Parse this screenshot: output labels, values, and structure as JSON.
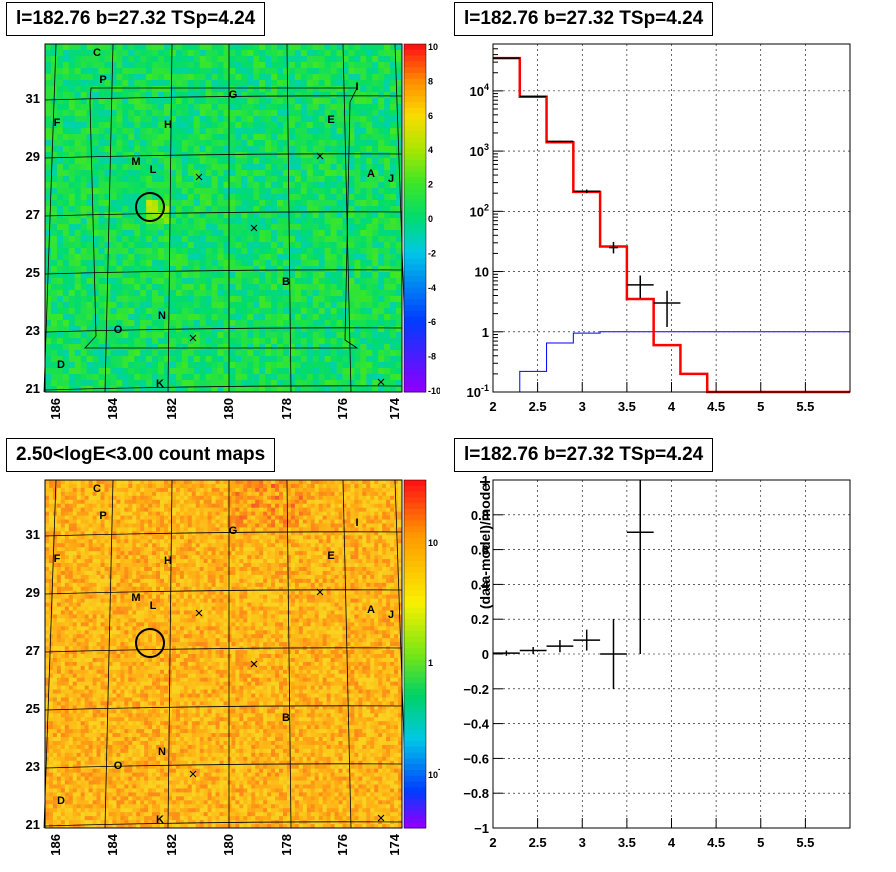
{
  "panels": {
    "tl_title": "l=182.76 b=27.32 TSp=4.24",
    "tr_title": "l=182.76 b=27.32 TSp=4.24",
    "bl_title": "2.50<logE<3.00 count maps",
    "br_title": "l=182.76 b=27.32 TSp=4.24"
  },
  "colors": {
    "model": "#ff0000",
    "background": "#0000ff",
    "data": "#000000"
  },
  "chart_data": [
    {
      "type": "heatmap",
      "title": "l=182.76 b=27.32 TSp=4.24",
      "x_ticks": [
        "186",
        "184",
        "182",
        "180",
        "178",
        "176",
        "174"
      ],
      "y_ticks": [
        "31",
        "29",
        "27",
        "25",
        "23",
        "21"
      ],
      "colorbar_ticks": [
        "10",
        "8",
        "6",
        "4",
        "2",
        "0",
        "-2",
        "-4",
        "-6",
        "-8",
        "-10"
      ],
      "colorbar_range": [
        -10,
        10
      ],
      "source_labels": [
        "C",
        "P",
        "I",
        "G",
        "F",
        "H",
        "E",
        "M",
        "L",
        "A",
        "J",
        "B",
        "O",
        "N",
        "D",
        "K"
      ],
      "circle_label": ""
    },
    {
      "type": "line",
      "title": "l=182.76 b=27.32 TSp=4.24",
      "x_ticks": [
        "2",
        "2.5",
        "3",
        "3.5",
        "4",
        "4.5",
        "5",
        "5.5"
      ],
      "y_ticks": [
        "10^-1",
        "1",
        "10",
        "10^2",
        "10^3",
        "10^4"
      ],
      "xlim": [
        2,
        6
      ],
      "ylim": [
        0.1,
        60000
      ],
      "ylog": true,
      "grid": true,
      "model_steps": {
        "edges": [
          2,
          2.3,
          2.6,
          2.9,
          3.2,
          3.5,
          3.8,
          4.1,
          4.4,
          6
        ],
        "values": [
          35000,
          8000,
          1400,
          210,
          26,
          3.5,
          0.6,
          0.2,
          0.1
        ]
      },
      "background_steps": {
        "edges": [
          2.3,
          2.6,
          2.9,
          3.2,
          6
        ],
        "values": [
          0.22,
          0.65,
          0.95,
          1.0
        ]
      },
      "data_points": [
        {
          "x": 2.15,
          "y": 35000,
          "xerr": 0.15,
          "ylo": 34500,
          "yhi": 35500
        },
        {
          "x": 2.45,
          "y": 8100,
          "xerr": 0.15,
          "ylo": 8000,
          "yhi": 8200
        },
        {
          "x": 2.75,
          "y": 1450,
          "xerr": 0.15,
          "ylo": 1410,
          "yhi": 1490
        },
        {
          "x": 3.05,
          "y": 215,
          "xerr": 0.15,
          "ylo": 200,
          "yhi": 230
        },
        {
          "x": 3.35,
          "y": 25,
          "xerr": 0.05,
          "ylo": 20,
          "yhi": 31
        },
        {
          "x": 3.65,
          "y": 6,
          "xerr": 0.15,
          "ylo": 3.6,
          "yhi": 8.6
        },
        {
          "x": 3.95,
          "y": 3,
          "xerr": 0.15,
          "ylo": 1.2,
          "yhi": 4.8
        }
      ]
    },
    {
      "type": "heatmap",
      "title": "2.50<logE<3.00 count maps",
      "x_ticks": [
        "186",
        "184",
        "182",
        "180",
        "178",
        "176",
        "174"
      ],
      "y_ticks": [
        "31",
        "29",
        "27",
        "25",
        "23",
        "21"
      ],
      "colorbar_ticks": [
        "10",
        "1",
        "10^-1"
      ],
      "colorbar_log": true,
      "source_labels": [
        "C",
        "P",
        "I",
        "G",
        "F",
        "H",
        "E",
        "M",
        "L",
        "A",
        "J",
        "B",
        "O",
        "N",
        "D",
        "K"
      ]
    },
    {
      "type": "scatter",
      "title": "l=182.76 b=27.32 TSp=4.24",
      "ylabel": "(data-model)/model",
      "x_ticks": [
        "2",
        "2.5",
        "3",
        "3.5",
        "4",
        "4.5",
        "5",
        "5.5"
      ],
      "y_ticks": [
        "1",
        "0.8",
        "0.6",
        "0.4",
        "0.2",
        "0",
        "−0.2",
        "−0.4",
        "−0.6",
        "−0.8",
        "−1"
      ],
      "xlim": [
        2,
        6
      ],
      "ylim": [
        -1,
        1
      ],
      "grid": true,
      "points": [
        {
          "x": 2.15,
          "y": 0.005,
          "xerr": 0.15,
          "ylo": -0.01,
          "yhi": 0.02
        },
        {
          "x": 2.45,
          "y": 0.02,
          "xerr": 0.15,
          "ylo": 0.0,
          "yhi": 0.04
        },
        {
          "x": 2.75,
          "y": 0.045,
          "xerr": 0.15,
          "ylo": 0.01,
          "yhi": 0.08
        },
        {
          "x": 3.05,
          "y": 0.08,
          "xerr": 0.15,
          "ylo": 0.02,
          "yhi": 0.14
        },
        {
          "x": 3.35,
          "y": 0.0,
          "xerr": 0.15,
          "ylo": -0.2,
          "yhi": 0.2
        },
        {
          "x": 3.65,
          "y": 0.7,
          "xerr": 0.15,
          "ylo": 0.0,
          "yhi": 1.0
        }
      ]
    }
  ]
}
